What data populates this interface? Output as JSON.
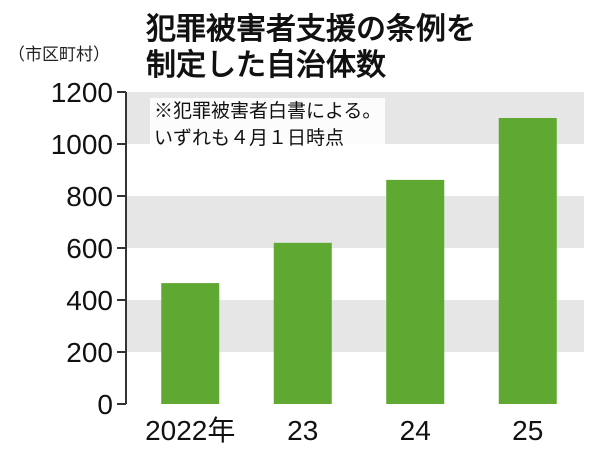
{
  "header": {
    "unit": "（市区町村）",
    "title_lines": [
      "犯罪被害者支援の条例を",
      "制定した自治体数"
    ],
    "note_lines": [
      "※犯罪被害者白書による。",
      "いずれも４月１日時点"
    ]
  },
  "colors": {
    "bar": "#5fa832",
    "band": "#e6e6e6",
    "axis": "#333333"
  },
  "chart_data": {
    "type": "bar",
    "title": "犯罪被害者支援の条例を制定した自治体数",
    "ylabel": "（市区町村）",
    "categories": [
      "2022年",
      "23",
      "24",
      "25"
    ],
    "values": [
      465,
      620,
      862,
      1100
    ],
    "ylim": [
      0,
      1200
    ],
    "yticks": [
      0,
      200,
      400,
      600,
      800,
      1000,
      1200
    ],
    "grid": "alternating horizontal bands"
  }
}
